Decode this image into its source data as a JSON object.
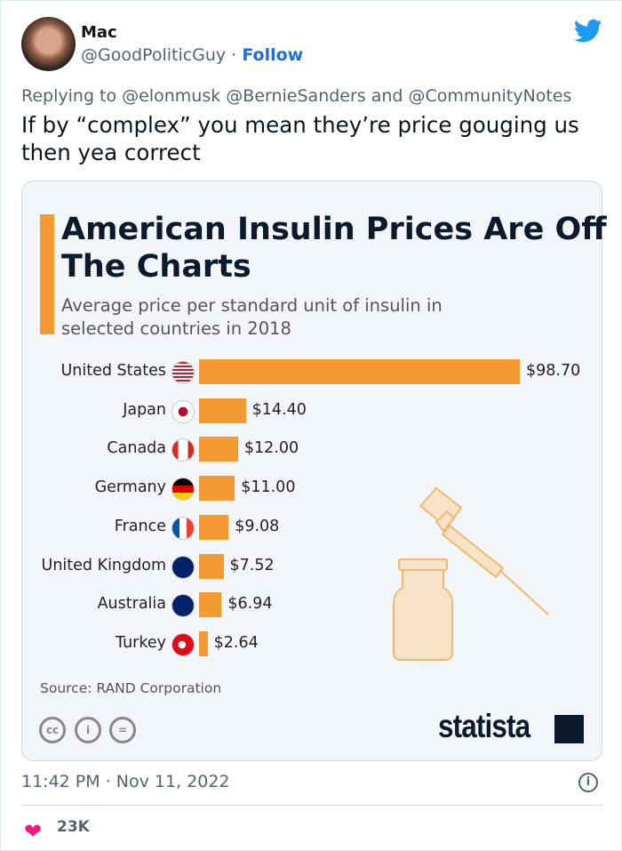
{
  "tweet": {
    "author_name": "Mac",
    "handle": "@GoodPoliticGuy",
    "separator": "·",
    "follow_label": "Follow",
    "replying_to": "Replying to @elonmusk @BernieSanders and @CommunityNotes",
    "text": "If by “complex” you mean they’re price gouging us then yea correct",
    "timestamp": "11:42 PM · Nov 11, 2022",
    "likes": "23K",
    "icons": [
      "twitter-bird-icon",
      "info-icon",
      "heart-icon"
    ],
    "colors": {
      "link": "#1d6fd6",
      "heart": "#f91880",
      "twitter": "#1d9bf0"
    }
  },
  "chart_data": {
    "type": "bar",
    "orientation": "horizontal",
    "title": "American Insulin Prices Are Off The Charts",
    "subtitle": "Average price per standard unit of insulin in selected countries in 2018",
    "categories": [
      "United States",
      "Japan",
      "Canada",
      "Germany",
      "France",
      "United Kingdom",
      "Australia",
      "Turkey"
    ],
    "values": [
      98.7,
      14.4,
      12.0,
      11.0,
      9.08,
      7.52,
      6.94,
      2.64
    ],
    "value_labels": [
      "$98.70",
      "$14.40",
      "$12.00",
      "$11.00",
      "$9.08",
      "$7.52",
      "$6.94",
      "$2.64"
    ],
    "source": "Source: RAND Corporation",
    "brand": "statista",
    "license_icons": [
      "cc",
      "by",
      "nd"
    ],
    "bar_color": "#f39a33",
    "grid": false
  }
}
